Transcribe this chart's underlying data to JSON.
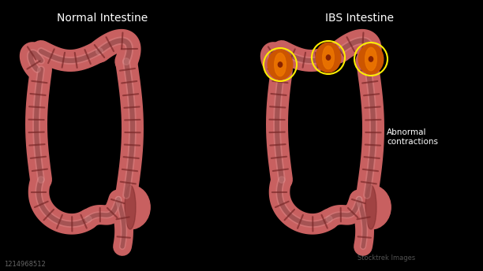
{
  "background_color": "#000000",
  "title_left": "Normal Intestine",
  "title_right": "IBS Intestine",
  "title_color": "#ffffff",
  "title_fontsize": 10,
  "intestine_base": "#c86060",
  "intestine_light": "#d87878",
  "intestine_highlight": "#e8a0a0",
  "intestine_dark": "#7a2828",
  "intestine_shadow": "#401010",
  "contraction_orange": "#cc5500",
  "contraction_bright": "#ee7700",
  "contraction_dark": "#882200",
  "circle_color": "#ffee00",
  "annotation_text": "Abnormal\ncontractions",
  "annotation_color": "#ffffff",
  "watermark_text": "Stocktrek Images",
  "id_text": "1214968512",
  "fig_width": 6.12,
  "fig_height": 3.44,
  "dpi": 100
}
